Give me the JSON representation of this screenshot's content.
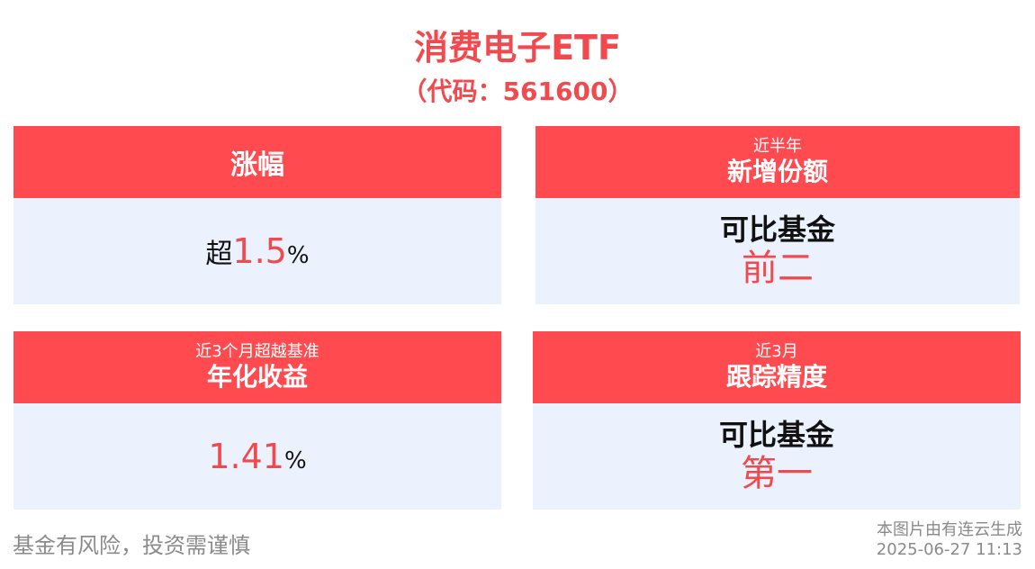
{
  "header": {
    "title": "消费电子ETF",
    "subtitle": "（代码：561600）"
  },
  "cards": [
    {
      "head_small": "",
      "head_big": "涨幅",
      "value_prefix": "超",
      "value_number": "1.5",
      "value_suffix": "%"
    },
    {
      "head_small": "近半年",
      "head_big": "新增份额",
      "label": "可比基金",
      "rank": "前二"
    },
    {
      "head_small": "近3个月超越基准",
      "head_big": "年化收益",
      "value_number": "1.41",
      "value_suffix": "%"
    },
    {
      "head_small": "近3月",
      "head_big": "跟踪精度",
      "label": "可比基金",
      "rank": "第一"
    }
  ],
  "footer": {
    "disclaimer": "基金有风险，投资需谨慎",
    "generated_by": "本图片由有连云生成",
    "timestamp": "2025-06-27 11:13"
  },
  "colors": {
    "accent_red": "#ff4b50",
    "body_blue": "#ebf2fe"
  }
}
